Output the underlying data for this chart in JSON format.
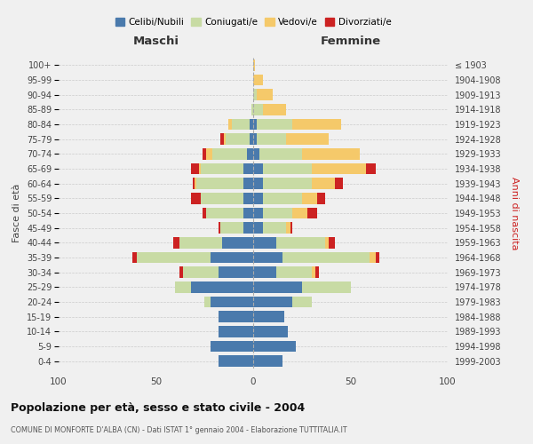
{
  "age_groups": [
    "0-4",
    "5-9",
    "10-14",
    "15-19",
    "20-24",
    "25-29",
    "30-34",
    "35-39",
    "40-44",
    "45-49",
    "50-54",
    "55-59",
    "60-64",
    "65-69",
    "70-74",
    "75-79",
    "80-84",
    "85-89",
    "90-94",
    "95-99",
    "100+"
  ],
  "birth_years": [
    "1999-2003",
    "1994-1998",
    "1989-1993",
    "1984-1988",
    "1979-1983",
    "1974-1978",
    "1969-1973",
    "1964-1968",
    "1959-1963",
    "1954-1958",
    "1949-1953",
    "1944-1948",
    "1939-1943",
    "1934-1938",
    "1929-1933",
    "1924-1928",
    "1919-1923",
    "1914-1918",
    "1909-1913",
    "1904-1908",
    "≤ 1903"
  ],
  "colors": {
    "celibi": "#4a7aac",
    "coniugati": "#c8dba4",
    "vedovi": "#f5c96a",
    "divorziati": "#cc2222"
  },
  "title": "Popolazione per età, sesso e stato civile - 2004",
  "subtitle": "COMUNE DI MONFORTE D'ALBA (CN) - Dati ISTAT 1° gennaio 2004 - Elaborazione TUTTITALIA.IT",
  "xlabel_left": "Maschi",
  "xlabel_right": "Femmine",
  "ylabel_left": "Fasce di età",
  "ylabel_right": "Anni di nascita",
  "xlim": 100,
  "legend_labels": [
    "Celibi/Nubili",
    "Coniugati/e",
    "Vedovi/e",
    "Divorziati/e"
  ],
  "bg_color": "#f0f0f0",
  "bar_height": 0.75,
  "males_celibi": [
    18,
    22,
    18,
    18,
    22,
    32,
    18,
    22,
    16,
    5,
    5,
    5,
    5,
    5,
    3,
    2,
    2,
    0,
    0,
    0,
    0
  ],
  "males_coniugati": [
    0,
    0,
    0,
    0,
    3,
    8,
    18,
    38,
    22,
    12,
    19,
    22,
    24,
    22,
    18,
    12,
    9,
    1,
    0,
    0,
    0
  ],
  "males_vedovi": [
    0,
    0,
    0,
    0,
    0,
    0,
    0,
    0,
    0,
    0,
    0,
    0,
    1,
    1,
    3,
    1,
    2,
    0,
    0,
    0,
    0
  ],
  "males_divorziati": [
    0,
    0,
    0,
    0,
    0,
    0,
    2,
    2,
    3,
    1,
    2,
    5,
    1,
    4,
    2,
    2,
    0,
    0,
    0,
    0,
    0
  ],
  "females_nubili": [
    15,
    22,
    18,
    16,
    20,
    25,
    12,
    15,
    12,
    5,
    5,
    5,
    5,
    5,
    3,
    2,
    2,
    0,
    0,
    0,
    0
  ],
  "females_coniugate": [
    0,
    0,
    0,
    0,
    10,
    25,
    18,
    45,
    25,
    12,
    15,
    20,
    25,
    25,
    22,
    15,
    18,
    5,
    2,
    0,
    0
  ],
  "females_vedove": [
    0,
    0,
    0,
    0,
    0,
    0,
    2,
    3,
    2,
    2,
    8,
    8,
    12,
    28,
    30,
    22,
    25,
    12,
    8,
    5,
    1
  ],
  "females_divorziate": [
    0,
    0,
    0,
    0,
    0,
    0,
    2,
    2,
    3,
    1,
    5,
    4,
    4,
    5,
    0,
    0,
    0,
    0,
    0,
    0,
    0
  ]
}
